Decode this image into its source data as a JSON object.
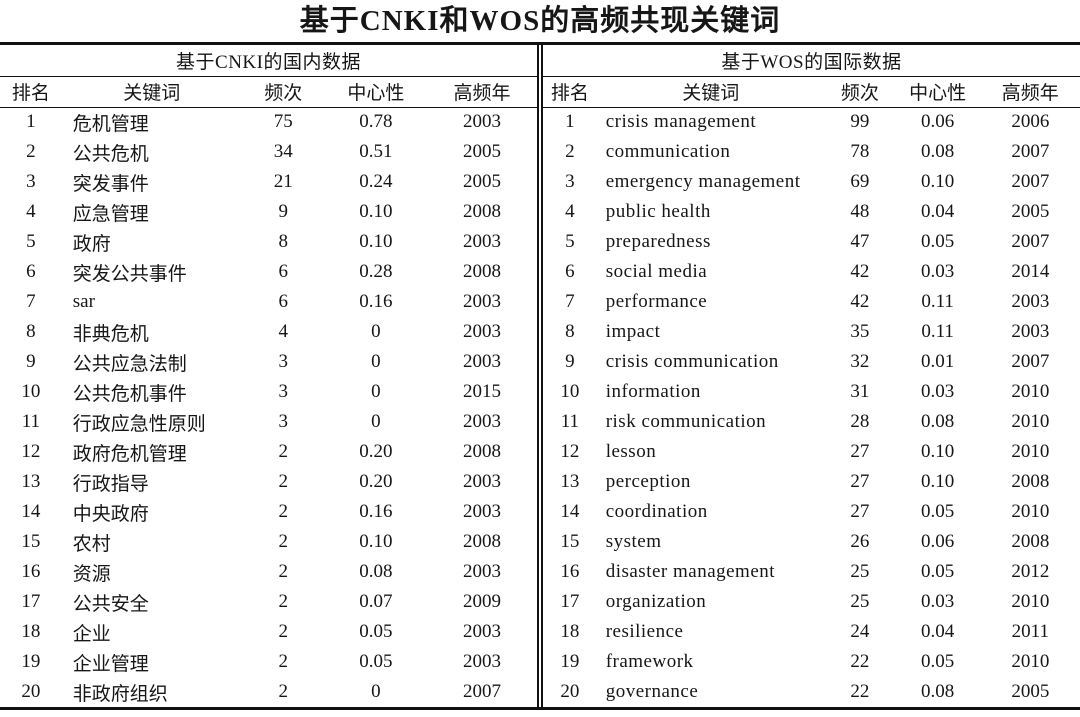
{
  "title": "基于CNKI和WOS的高频共现关键词",
  "colors": {
    "background": "#ffffff",
    "text": "#161616",
    "border": "#111111"
  },
  "panels": [
    {
      "id": "cnki",
      "group_header": "基于CNKI的国内数据",
      "columns": [
        "排名",
        "关键词",
        "频次",
        "中心性",
        "高频年"
      ],
      "rows": [
        [
          "1",
          "危机管理",
          "75",
          "0.78",
          "2003"
        ],
        [
          "2",
          "公共危机",
          "34",
          "0.51",
          "2005"
        ],
        [
          "3",
          "突发事件",
          "21",
          "0.24",
          "2005"
        ],
        [
          "4",
          "应急管理",
          "9",
          "0.10",
          "2008"
        ],
        [
          "5",
          "政府",
          "8",
          "0.10",
          "2003"
        ],
        [
          "6",
          "突发公共事件",
          "6",
          "0.28",
          "2008"
        ],
        [
          "7",
          "sar",
          "6",
          "0.16",
          "2003"
        ],
        [
          "8",
          "非典危机",
          "4",
          "0",
          "2003"
        ],
        [
          "9",
          "公共应急法制",
          "3",
          "0",
          "2003"
        ],
        [
          "10",
          "公共危机事件",
          "3",
          "0",
          "2015"
        ],
        [
          "11",
          "行政应急性原则",
          "3",
          "0",
          "2003"
        ],
        [
          "12",
          "政府危机管理",
          "2",
          "0.20",
          "2008"
        ],
        [
          "13",
          "行政指导",
          "2",
          "0.20",
          "2003"
        ],
        [
          "14",
          "中央政府",
          "2",
          "0.16",
          "2003"
        ],
        [
          "15",
          "农村",
          "2",
          "0.10",
          "2008"
        ],
        [
          "16",
          "资源",
          "2",
          "0.08",
          "2003"
        ],
        [
          "17",
          "公共安全",
          "2",
          "0.07",
          "2009"
        ],
        [
          "18",
          "企业",
          "2",
          "0.05",
          "2003"
        ],
        [
          "19",
          "企业管理",
          "2",
          "0.05",
          "2003"
        ],
        [
          "20",
          "非政府组织",
          "2",
          "0",
          "2007"
        ]
      ]
    },
    {
      "id": "wos",
      "group_header": "基于WOS的国际数据",
      "columns": [
        "排名",
        "关键词",
        "频次",
        "中心性",
        "高频年"
      ],
      "rows": [
        [
          "1",
          "crisis management",
          "99",
          "0.06",
          "2006"
        ],
        [
          "2",
          "communication",
          "78",
          "0.08",
          "2007"
        ],
        [
          "3",
          "emergency management",
          "69",
          "0.10",
          "2007"
        ],
        [
          "4",
          "public health",
          "48",
          "0.04",
          "2005"
        ],
        [
          "5",
          "preparedness",
          "47",
          "0.05",
          "2007"
        ],
        [
          "6",
          "social media",
          "42",
          "0.03",
          "2014"
        ],
        [
          "7",
          "performance",
          "42",
          "0.11",
          "2003"
        ],
        [
          "8",
          "impact",
          "35",
          "0.11",
          "2003"
        ],
        [
          "9",
          "crisis communication",
          "32",
          "0.01",
          "2007"
        ],
        [
          "10",
          "information",
          "31",
          "0.03",
          "2010"
        ],
        [
          "11",
          "risk communication",
          "28",
          "0.08",
          "2010"
        ],
        [
          "12",
          "lesson",
          "27",
          "0.10",
          "2010"
        ],
        [
          "13",
          "perception",
          "27",
          "0.10",
          "2008"
        ],
        [
          "14",
          "coordination",
          "27",
          "0.05",
          "2010"
        ],
        [
          "15",
          "system",
          "26",
          "0.06",
          "2008"
        ],
        [
          "16",
          "disaster management",
          "25",
          "0.05",
          "2012"
        ],
        [
          "17",
          "organization",
          "25",
          "0.03",
          "2010"
        ],
        [
          "18",
          "resilience",
          "24",
          "0.04",
          "2011"
        ],
        [
          "19",
          "framework",
          "22",
          "0.05",
          "2010"
        ],
        [
          "20",
          "governance",
          "22",
          "0.08",
          "2005"
        ]
      ]
    }
  ]
}
